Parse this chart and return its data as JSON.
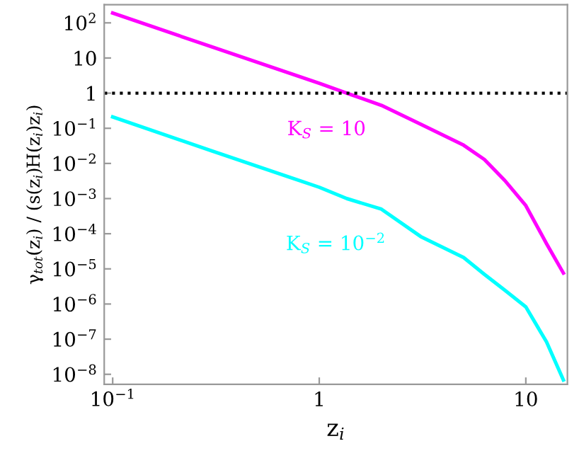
{
  "chart_data": {
    "type": "line",
    "log": "xy",
    "xlabel": "z$_{i}$",
    "ylabel": "γ$_{tot}$(z$_{i}$) / (s(z$_{i}$)H(z$_{i}$)z$_{i}$)",
    "xlim": [
      0.091,
      15.9
    ],
    "ylim": [
      5.2e-09,
      330
    ],
    "xticks": [
      {
        "value": 0.1,
        "label": "10$^{−1}$"
      },
      1,
      10
    ],
    "yticks": [
      {
        "value": 100,
        "label": "10$^{2}$"
      },
      10,
      1,
      {
        "value": 0.1,
        "label": "10$^{−1}$"
      },
      {
        "value": 0.01,
        "label": "10$^{−2}$"
      },
      {
        "value": 0.001,
        "label": "10$^{−3}$"
      },
      {
        "value": 0.0001,
        "label": "10$^{−4}$"
      },
      {
        "value": 1e-05,
        "label": "10$^{−5}$"
      },
      {
        "value": 1e-06,
        "label": "10$^{−6}$"
      },
      {
        "value": 1e-07,
        "label": "10$^{−7}$"
      },
      {
        "value": 1e-08,
        "label": "10$^{−8}$"
      }
    ],
    "grid": false,
    "marker": "none",
    "line_style": "solid",
    "ref_lines": [
      {
        "axis": "y",
        "value": 1,
        "color": "#000000",
        "line_style": "dotted"
      }
    ],
    "annotations": [
      "K$_{S}$ = 10",
      "K$_{S}$ = 10$^{−2}$"
    ],
    "series": [
      {
        "color": "#ff00ff",
        "x": [
          0.1,
          0.3,
          1,
          1.36,
          2,
          3.1,
          5,
          6.3,
          7.9,
          10,
          12.6,
          15.2
        ],
        "values": [
          190,
          21,
          1.9,
          1.0,
          0.45,
          0.13,
          0.033,
          0.013,
          0.0033,
          0.00063,
          5.2e-05,
          7.6e-06
        ]
      },
      {
        "color": "#00ffff",
        "x": [
          0.1,
          0.3,
          1,
          1.36,
          2,
          3.1,
          5,
          6.3,
          7.9,
          10,
          12.6,
          15.2
        ],
        "values": [
          0.21,
          0.023,
          0.0021,
          0.001,
          0.0005,
          8.3e-05,
          2.1e-05,
          7e-06,
          2.5e-06,
          8.3e-07,
          8.3e-08,
          6.9e-09
        ]
      }
    ]
  }
}
